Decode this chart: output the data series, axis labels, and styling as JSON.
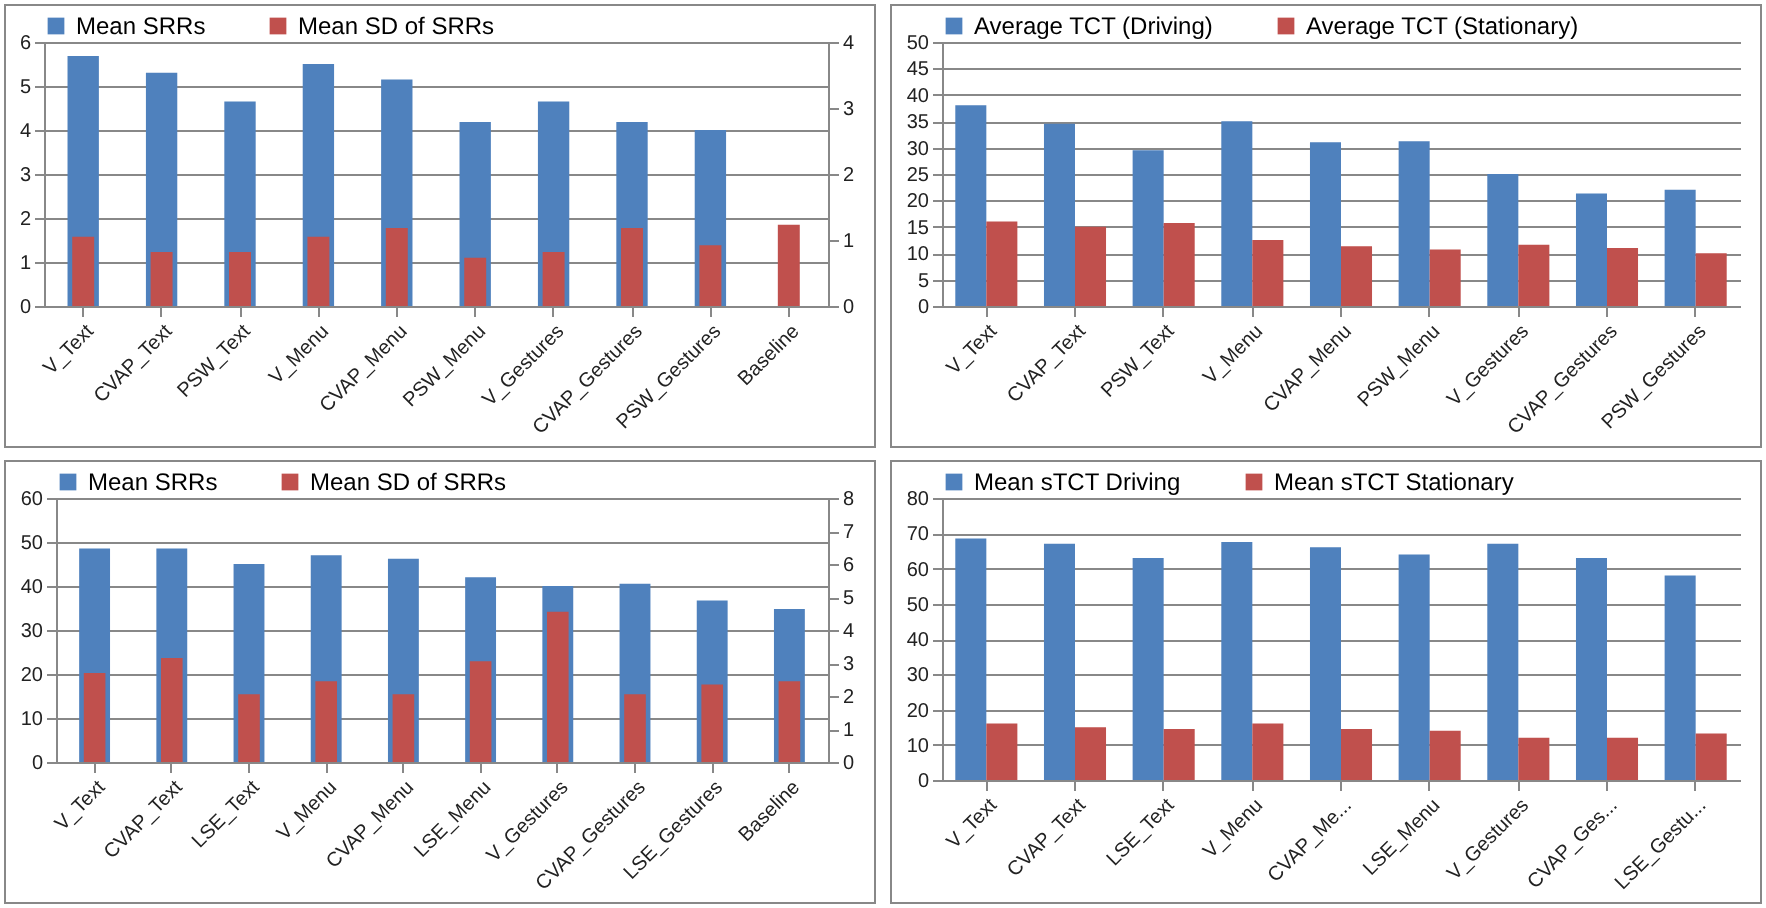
{
  "chart_data": [
    {
      "type": "bar",
      "categories": [
        "V_Text",
        "CVAP_Text",
        "PSW_Text",
        "V_Menu",
        "CVAP_Menu",
        "PSW_Menu",
        "V_Gestures",
        "CVAP_Gestures",
        "PSW_Gestures",
        "Baseline"
      ],
      "series": [
        {
          "name": "Mean SRRs",
          "color": "#4f81bd",
          "values": [
            5.68,
            5.3,
            4.65,
            5.5,
            5.15,
            4.18,
            4.65,
            4.18,
            4.0,
            null
          ]
        },
        {
          "name": "Mean SD of SRRs",
          "color": "#c0504d",
          "axis": "y2",
          "values": [
            1.05,
            0.82,
            0.82,
            1.05,
            1.18,
            0.73,
            0.82,
            1.18,
            0.92,
            1.23
          ]
        }
      ],
      "ylim": [
        0,
        6
      ],
      "yticks": [
        0,
        1,
        2,
        3,
        4,
        5,
        6
      ],
      "y2lim": [
        0,
        4
      ],
      "y2ticks": [
        0,
        1,
        2,
        3,
        4
      ],
      "grid": "y",
      "legend": "top"
    },
    {
      "type": "bar",
      "categories": [
        "V_Text",
        "CVAP_Text",
        "PSW_Text",
        "V_Menu",
        "CVAP_Menu",
        "PSW_Menu",
        "V_Gestures",
        "CVAP_Gestures",
        "PSW_Gestures"
      ],
      "series": [
        {
          "name": "Average TCT (Driving)",
          "color": "#4f81bd",
          "values": [
            38,
            34.5,
            29.5,
            35,
            31,
            31.2,
            25,
            21.3,
            22
          ]
        },
        {
          "name": "Average TCT (Stationary)",
          "color": "#c0504d",
          "values": [
            16,
            15,
            15.7,
            12.5,
            11.3,
            10.7,
            11.6,
            11,
            10
          ]
        }
      ],
      "ylim": [
        0,
        50
      ],
      "yticks": [
        0,
        5,
        10,
        15,
        20,
        25,
        30,
        35,
        40,
        45,
        50
      ],
      "grid": "y",
      "legend": "top"
    },
    {
      "type": "bar",
      "categories": [
        "V_Text",
        "CVAP_Text",
        "LSE_Text",
        "V_Menu",
        "CVAP_Menu",
        "LSE_Menu",
        "V_Gestures",
        "CVAP_Gestures",
        "LSE_Gestures",
        "Baseline"
      ],
      "series": [
        {
          "name": "Mean SRRs",
          "color": "#4f81bd",
          "values": [
            48.5,
            48.5,
            45,
            47,
            46.2,
            42,
            40,
            40.5,
            36.7,
            34.8
          ]
        },
        {
          "name": "Mean SD of SRRs",
          "color": "#c0504d",
          "axis": "y2",
          "values": [
            2.7,
            3.15,
            2.05,
            2.45,
            2.05,
            3.05,
            4.55,
            2.05,
            2.35,
            2.45
          ]
        }
      ],
      "ylim": [
        0,
        60
      ],
      "yticks": [
        0,
        10,
        20,
        30,
        40,
        50,
        60
      ],
      "y2lim": [
        0,
        8
      ],
      "y2ticks": [
        0,
        1,
        2,
        3,
        4,
        5,
        6,
        7,
        8
      ],
      "grid": "y",
      "legend": "top"
    },
    {
      "type": "bar",
      "categories": [
        "V_Text",
        "CVAP_Text",
        "LSE_Text",
        "V_Menu",
        "CVAP_Me...",
        "LSE_Menu",
        "V_Gestures",
        "CVAP_Ges...",
        "LSE_Gestu..."
      ],
      "series": [
        {
          "name": "Mean sTCT Driving",
          "color": "#4f81bd",
          "values": [
            68.5,
            67,
            63,
            67.5,
            66,
            64,
            67,
            63,
            58
          ]
        },
        {
          "name": "Mean sTCT Stationary",
          "color": "#c0504d",
          "values": [
            16,
            15,
            14.5,
            16,
            14.5,
            14,
            12,
            12,
            13.2
          ]
        }
      ],
      "ylim": [
        0,
        80
      ],
      "yticks": [
        0,
        10,
        20,
        30,
        40,
        50,
        60,
        70,
        80
      ],
      "grid": "y",
      "legend": "top"
    }
  ]
}
